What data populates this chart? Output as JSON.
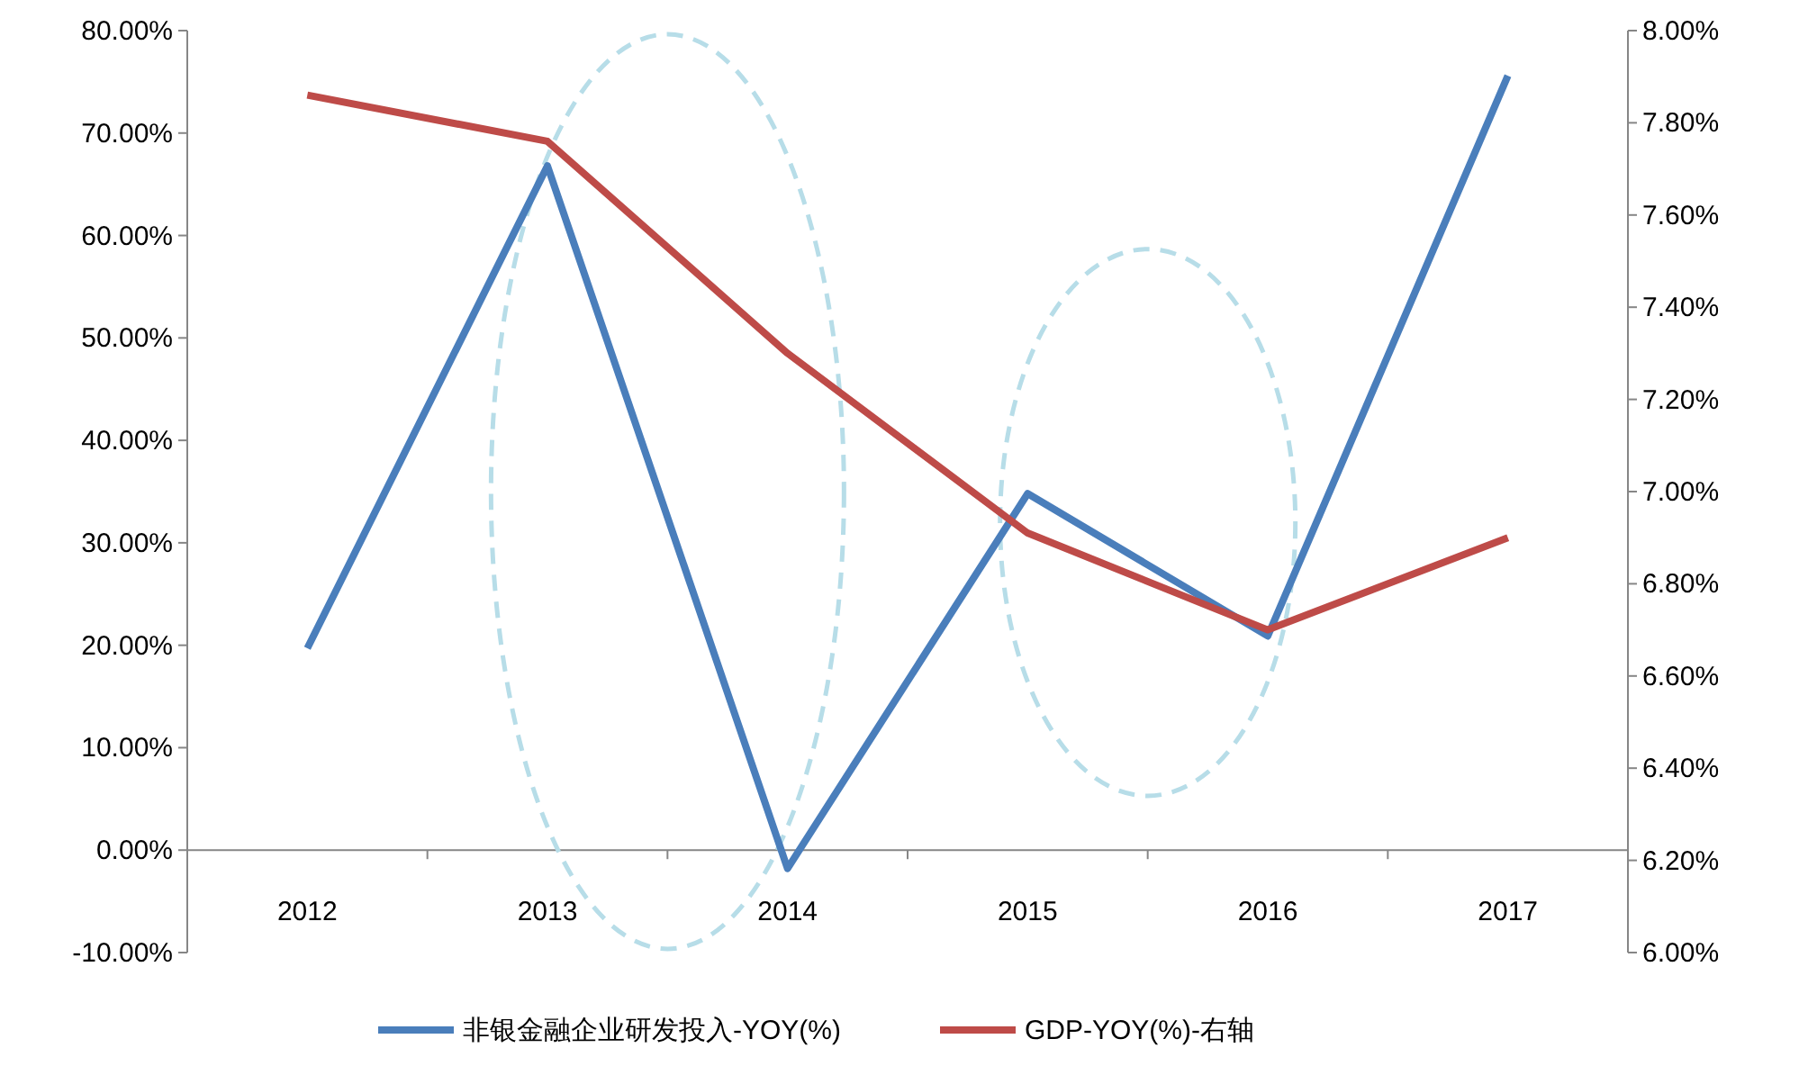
{
  "chart_data": {
    "type": "line",
    "categories": [
      "2012",
      "2013",
      "2014",
      "2015",
      "2016",
      "2017"
    ],
    "series": [
      {
        "name": "非银金融企业研发投入-YOY(%)",
        "color": "#4a7ebb",
        "values": [
          19.7,
          66.8,
          -1.8,
          34.8,
          20.9,
          75.6
        ]
      },
      {
        "name": "GDP-YOY(%)-右轴",
        "color": "#be4b48",
        "axis": "y2",
        "values": [
          7.86,
          7.76,
          7.3,
          6.91,
          6.7,
          6.9
        ]
      }
    ],
    "ylim": [
      -10,
      80
    ],
    "yticks": [
      {
        "value": -10,
        "label": "-10.00%"
      },
      {
        "value": 0,
        "label": "0.00%"
      },
      {
        "value": 10,
        "label": "10.00%"
      },
      {
        "value": 20,
        "label": "20.00%"
      },
      {
        "value": 30,
        "label": "30.00%"
      },
      {
        "value": 40,
        "label": "40.00%"
      },
      {
        "value": 50,
        "label": "50.00%"
      },
      {
        "value": 60,
        "label": "60.00%"
      },
      {
        "value": 70,
        "label": "70.00%"
      },
      {
        "value": 80,
        "label": "80.00%"
      }
    ],
    "y2lim": [
      6.0,
      8.0
    ],
    "y2ticks": [
      {
        "value": 6.0,
        "label": "6.00%"
      },
      {
        "value": 6.2,
        "label": "6.20%"
      },
      {
        "value": 6.4,
        "label": "6.40%"
      },
      {
        "value": 6.6,
        "label": "6.60%"
      },
      {
        "value": 6.8,
        "label": "6.80%"
      },
      {
        "value": 7.0,
        "label": "7.00%"
      },
      {
        "value": 7.2,
        "label": "7.20%"
      },
      {
        "value": 7.4,
        "label": "7.40%"
      },
      {
        "value": 7.6,
        "label": "7.60%"
      },
      {
        "value": 7.8,
        "label": "7.80%"
      },
      {
        "value": 8.0,
        "label": "8.00%"
      }
    ],
    "legend": "bottom",
    "grid": false,
    "marker": "none",
    "line_style": "solid"
  }
}
